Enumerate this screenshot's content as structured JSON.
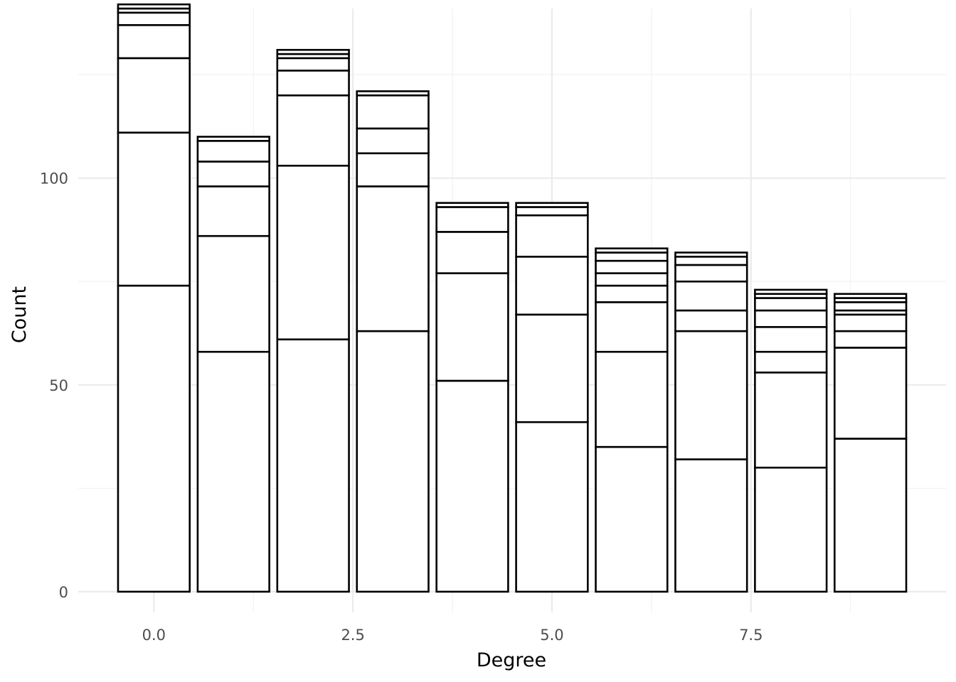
{
  "chart_data": {
    "type": "bar",
    "stacked": true,
    "title": "",
    "xlabel": "Degree",
    "ylabel": "Count",
    "x": [
      0,
      1,
      2,
      3,
      4,
      5,
      6,
      7,
      8,
      9
    ],
    "stacks": [
      [
        74,
        37,
        18,
        8,
        3,
        1,
        1
      ],
      [
        58,
        28,
        12,
        6,
        5,
        1
      ],
      [
        61,
        42,
        17,
        6,
        3,
        1,
        1
      ],
      [
        63,
        35,
        8,
        6,
        8,
        1
      ],
      [
        51,
        26,
        10,
        6,
        1
      ],
      [
        41,
        26,
        14,
        10,
        2,
        1
      ],
      [
        35,
        23,
        12,
        4,
        3,
        3,
        2,
        1
      ],
      [
        32,
        31,
        5,
        7,
        4,
        2,
        1
      ],
      [
        30,
        23,
        5,
        6,
        4,
        3,
        1,
        1
      ],
      [
        37,
        22,
        4,
        4,
        1,
        2,
        1,
        1
      ]
    ],
    "totals": [
      142,
      110,
      131,
      121,
      94,
      94,
      83,
      82,
      73,
      72
    ],
    "x_ticks": [
      0,
      2.5,
      5,
      7.5
    ],
    "x_tick_labels": [
      "0.0",
      "2.5",
      "5.0",
      "7.5"
    ],
    "y_ticks": [
      0,
      50,
      100
    ],
    "y_tick_labels": [
      "0",
      "50",
      "100"
    ],
    "xlim": [
      -0.95,
      9.95
    ],
    "ylim": [
      -5,
      141
    ],
    "bar_fill": "#ffffff",
    "bar_outline": "#000000",
    "grid": true,
    "legend": "none"
  }
}
